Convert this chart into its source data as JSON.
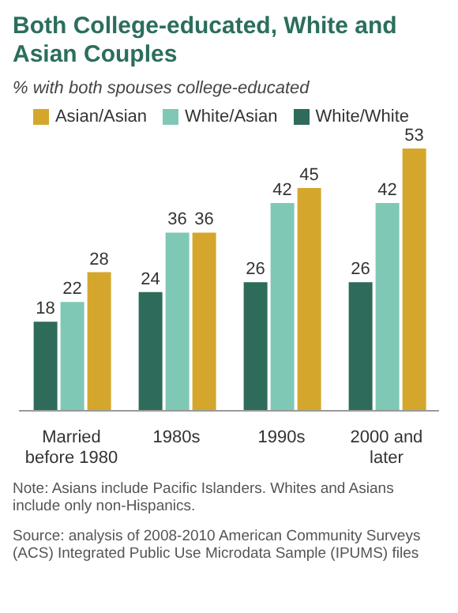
{
  "chart_data": {
    "type": "bar",
    "title": "Both College-educated, White and Asian Couples",
    "subtitle": "% with both spouses college-educated",
    "categories": [
      "Married before 1980",
      "1980s",
      "1990s",
      "2000 and later"
    ],
    "series": [
      {
        "name": "White/White",
        "color": "#2e6b5a",
        "values": [
          18,
          24,
          26,
          26
        ]
      },
      {
        "name": "White/Asian",
        "color": "#7fc8b5",
        "values": [
          22,
          36,
          42,
          42
        ]
      },
      {
        "name": "Asian/Asian",
        "color": "#d4a72c",
        "values": [
          28,
          36,
          45,
          53
        ]
      }
    ],
    "data_labels": true,
    "legend": "top",
    "grid": false,
    "annotations": [
      "Note: Asians include Pacific Islanders. Whites and Asians include only non-Hispanics.",
      "Source: analysis of 2008-2010 American Community Surveys (ACS) Integrated Public Use Microdata Sample (IPUMS) files"
    ]
  }
}
